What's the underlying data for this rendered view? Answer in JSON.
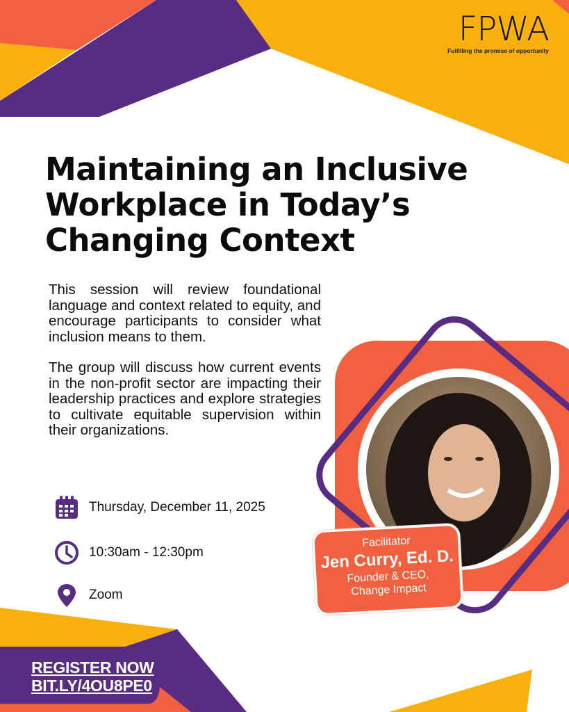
{
  "colors": {
    "purple": "#582c83",
    "orange": "#f2603f",
    "yellow": "#f9b00e"
  },
  "logo": {
    "wordmark": "FPWA",
    "tagline": "Fulfilling the promise of opportunity"
  },
  "title": "Maintaining an Inclusive Workplace in Today’s Changing Context",
  "description": [
    "This session will review foundational language and context related to equity, and encourage participants to consider what inclusion means to them.",
    "The group will discuss how current events in the non-profit sector are impacting their leadership practices and explore strategies to cultivate equitable supervision within their organizations."
  ],
  "details": [
    {
      "icon": "calendar-icon",
      "text": "Thursday, December 11, 2025"
    },
    {
      "icon": "clock-icon",
      "text": "10:30am - 12:30pm"
    },
    {
      "icon": "location-pin-icon",
      "text": "Zoom"
    }
  ],
  "facilitator": {
    "role": "Facilitator",
    "name": "Jen Curry, Ed. D.",
    "title_line1": "Founder & CEO,",
    "title_line2": "Change Impact"
  },
  "register": {
    "line1": "REGISTER NOW",
    "line2": "BIT.LY/4OU8PE0"
  }
}
